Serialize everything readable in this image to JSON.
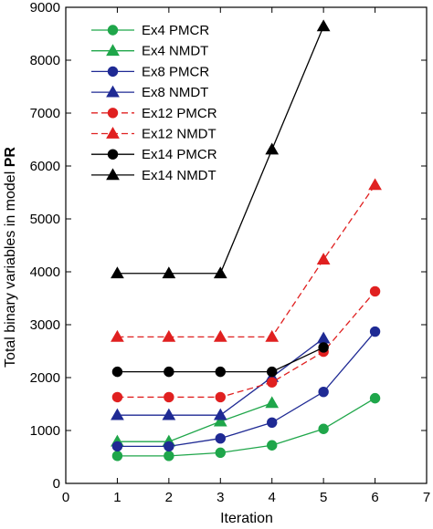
{
  "chart_data": {
    "type": "line",
    "xlabel": "Iteration",
    "ylabel_prefix": "Total binary variables in model ",
    "ylabel_bold": "PR",
    "xlim": [
      0,
      7
    ],
    "ylim": [
      0,
      9000
    ],
    "xticks": [
      0,
      1,
      2,
      3,
      4,
      5,
      6,
      7
    ],
    "yticks": [
      0,
      1000,
      2000,
      3000,
      4000,
      5000,
      6000,
      7000,
      8000,
      9000
    ],
    "grid": false,
    "legend_position": "top-left",
    "series": [
      {
        "name": "Ex4 PMCR",
        "color": "#1fa64a",
        "marker": "circle",
        "dash": "solid",
        "x": [
          1,
          2,
          3,
          4,
          5,
          6
        ],
        "y": [
          520,
          520,
          580,
          720,
          1030,
          1610
        ]
      },
      {
        "name": "Ex4 NMDT",
        "color": "#1fa64a",
        "marker": "triangle",
        "dash": "solid",
        "x": [
          1,
          2,
          3,
          4
        ],
        "y": [
          790,
          790,
          1170,
          1520
        ]
      },
      {
        "name": "Ex8 PMCR",
        "color": "#1f2a94",
        "marker": "circle",
        "dash": "solid",
        "x": [
          1,
          2,
          3,
          4,
          5,
          6
        ],
        "y": [
          700,
          700,
          850,
          1150,
          1730,
          2870
        ]
      },
      {
        "name": "Ex8 NMDT",
        "color": "#1f2a94",
        "marker": "triangle",
        "dash": "solid",
        "x": [
          1,
          2,
          3,
          4,
          5
        ],
        "y": [
          1290,
          1290,
          1290,
          2010,
          2740
        ]
      },
      {
        "name": "Ex12 PMCR",
        "color": "#e02020",
        "marker": "circle",
        "dash": "dashed",
        "x": [
          1,
          2,
          3,
          4,
          5,
          6
        ],
        "y": [
          1630,
          1630,
          1630,
          1910,
          2490,
          3630
        ]
      },
      {
        "name": "Ex12 NMDT",
        "color": "#e02020",
        "marker": "triangle",
        "dash": "dashed",
        "x": [
          1,
          2,
          3,
          4,
          5,
          6
        ],
        "y": [
          2770,
          2770,
          2770,
          2770,
          4230,
          5640
        ]
      },
      {
        "name": "Ex14 PMCR",
        "color": "#000000",
        "marker": "circle",
        "dash": "solid",
        "x": [
          1,
          2,
          3,
          4,
          5
        ],
        "y": [
          2110,
          2110,
          2110,
          2110,
          2570
        ]
      },
      {
        "name": "Ex14 NMDT",
        "color": "#000000",
        "marker": "triangle",
        "dash": "solid",
        "x": [
          1,
          2,
          3,
          4,
          5
        ],
        "y": [
          3970,
          3970,
          3970,
          6310,
          8640
        ]
      }
    ]
  }
}
